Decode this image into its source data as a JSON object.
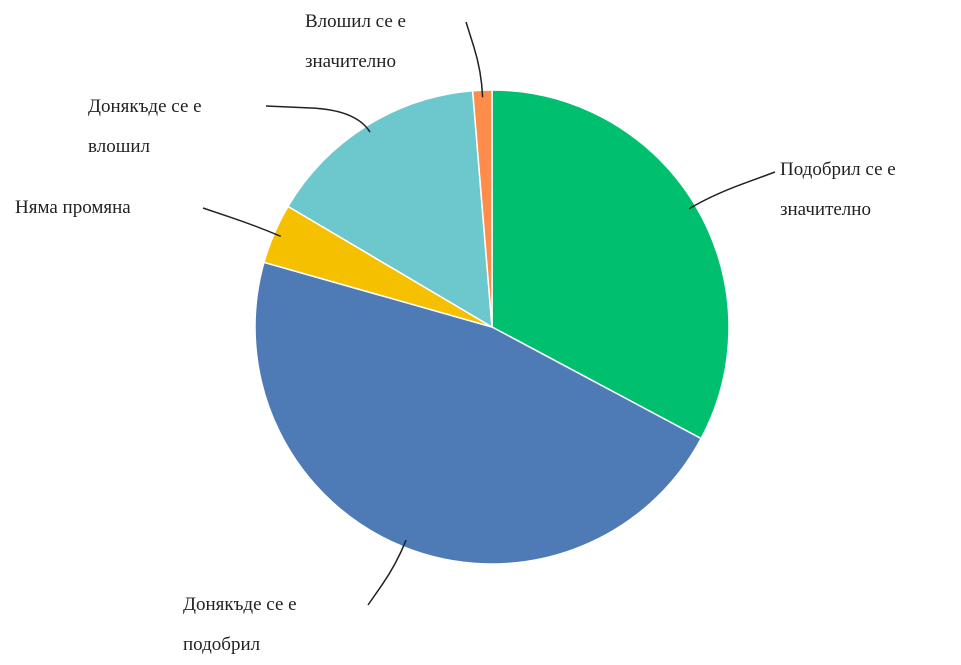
{
  "chart_data": {
    "type": "pie",
    "categories": [
      "Подобрил се е значително",
      "Донякъде се е подобрил",
      "Няма промяна",
      "Донякъде се е влошил",
      "Влошил се е значително"
    ],
    "values": [
      32.8,
      46.6,
      4.1,
      15.2,
      1.3
    ],
    "colors": [
      "#00bf6f",
      "#4e7ab5",
      "#f5c000",
      "#6cc8cc",
      "#ff8c4a"
    ]
  }
}
